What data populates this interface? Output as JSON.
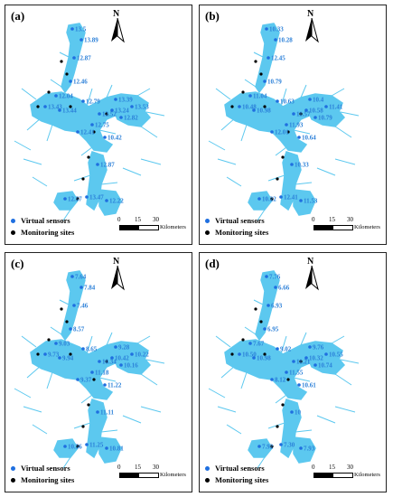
{
  "colors": {
    "water": "#5cc8ef",
    "sensor": "#1f6fe0",
    "site": "#000000",
    "label": "#2a7fd8"
  },
  "legend": {
    "virtual_sensors": "Virtual sensors",
    "monitoring_sites": "Monitoring sites"
  },
  "scale": {
    "t0": "0",
    "t1": "15",
    "t2": "30",
    "unit": "Kilometers"
  },
  "north_label": "N",
  "panels": {
    "a": {
      "label": "(a)",
      "values": [
        "13.5",
        "13.89",
        "12.87",
        "12.46",
        "12.04",
        "12.79",
        "13.39",
        "13.43",
        "13.44",
        "13.53",
        "13.24",
        "12.52",
        "12.82",
        "12.75",
        "10.42",
        "12.87",
        "13.47",
        "12.22",
        "12.57",
        "12.41"
      ]
    },
    "b": {
      "label": "(b)",
      "values": [
        "10.33",
        "10.28",
        "12.45",
        "10.79",
        "11.04",
        "10.63",
        "10.4",
        "10.48",
        "10.98",
        "11.41",
        "10.58",
        "11.57",
        "10.79",
        "11.93",
        "10.64",
        "10.33",
        "12.41",
        "11.53",
        "10.22",
        "12.01"
      ]
    },
    "c": {
      "label": "(c)",
      "values": [
        "7.64",
        "7.84",
        "7.46",
        "8.57",
        "9.03",
        "8.65",
        "9.28",
        "9.73",
        "9.94",
        "10.22",
        "10.42",
        "10.34",
        "10.16",
        "11.18",
        "11.22",
        "11.11",
        "11.25",
        "10.81",
        "10.56",
        "9.37"
      ]
    },
    "d": {
      "label": "(d)",
      "values": [
        "7.76",
        "6.66",
        "6.93",
        "6.95",
        "7.67",
        "9.02",
        "9.76",
        "10.50",
        "10.98",
        "10.55",
        "10.32",
        "11.21",
        "10.74",
        "11.55",
        "10.61",
        "10",
        "7.30",
        "7.93",
        "7.92",
        "8.12"
      ]
    }
  }
}
